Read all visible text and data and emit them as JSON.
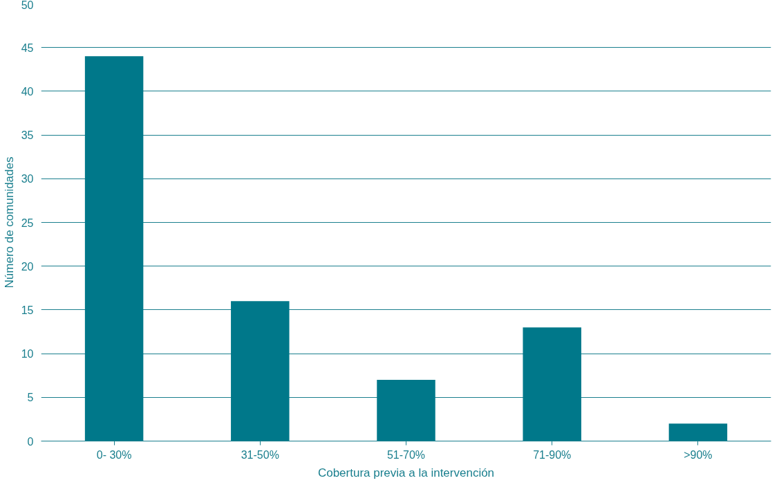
{
  "chart_data": {
    "type": "bar",
    "xlabel": "Cobertura previa a la intervención",
    "ylabel": "Número de comunidades",
    "categories": [
      "0- 30%",
      "31-50%",
      "51-70%",
      "71-90%",
      ">90%"
    ],
    "values": [
      44,
      16,
      7,
      13,
      2
    ],
    "color": "#00788a",
    "ylim": [
      0,
      50
    ],
    "yticks": [
      0,
      5,
      10,
      15,
      20,
      25,
      30,
      35,
      40,
      45,
      50
    ],
    "grid": "y"
  }
}
